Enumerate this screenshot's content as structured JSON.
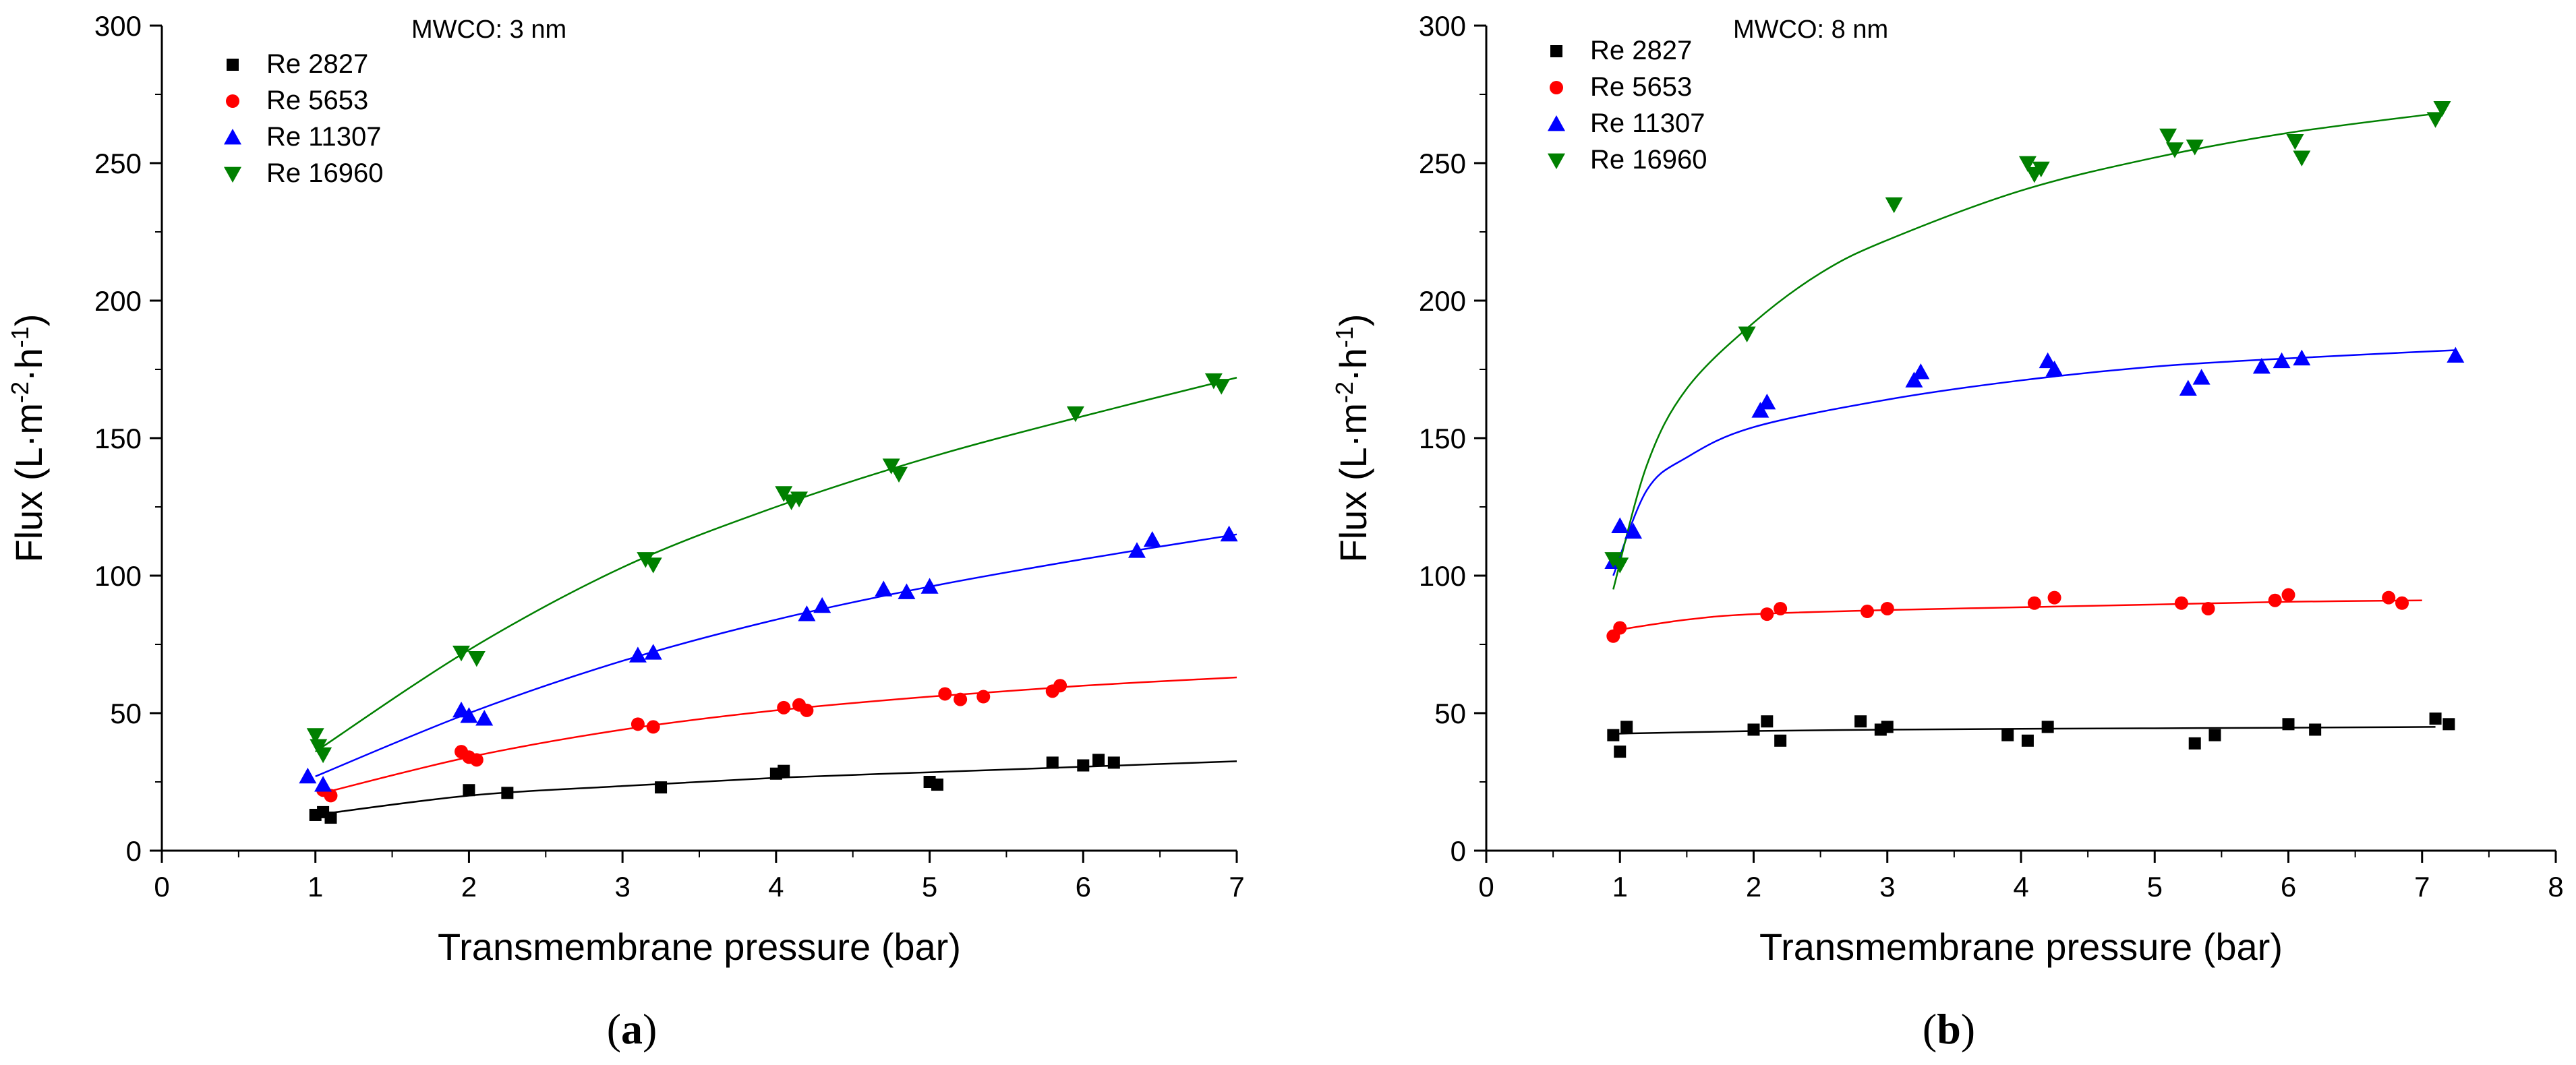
{
  "chart_data": [
    {
      "type": "scatter",
      "panel": "(a)",
      "caption_letter": "a",
      "annotation": "MWCO: 3 nm",
      "xlabel": "Transmembrane pressure (bar)",
      "ylabel": "Flux (L·m⁻²·h⁻¹)",
      "ylabel_parts": {
        "base": "Flux (L·m",
        "sup1": "-2",
        "mid": "·h",
        "sup2": "-1",
        "end": ")"
      },
      "xlim": [
        0,
        7
      ],
      "ylim": [
        0,
        300
      ],
      "xticks": [
        0,
        1,
        2,
        3,
        4,
        5,
        6,
        7
      ],
      "yticks": [
        0,
        50,
        100,
        150,
        200,
        250,
        300
      ],
      "legend_position": "top-left",
      "series": [
        {
          "name": "Re 2827",
          "color": "#000000",
          "marker": "square",
          "x": [
            1.0,
            1.05,
            1.1,
            2.0,
            2.25,
            3.25,
            4.0,
            4.05,
            5.0,
            5.05,
            5.8,
            6.0,
            6.1,
            6.2
          ],
          "y": [
            13,
            14,
            12,
            22,
            21,
            23,
            28,
            29,
            25,
            24,
            32,
            31,
            33,
            32
          ],
          "fit": {
            "x": [
              1.0,
              2,
              3,
              4,
              5,
              6,
              7
            ],
            "y": [
              13,
              20,
              23.5,
              26.5,
              28.5,
              30.5,
              32.5
            ]
          }
        },
        {
          "name": "Re 5653",
          "color": "#ff0000",
          "marker": "circle",
          "x": [
            1.05,
            1.1,
            1.95,
            2.0,
            2.05,
            3.1,
            3.2,
            4.05,
            4.15,
            4.2,
            5.1,
            5.2,
            5.35,
            5.8,
            5.85
          ],
          "y": [
            22,
            20,
            36,
            34,
            33,
            46,
            45,
            52,
            53,
            51,
            57,
            55,
            56,
            58,
            60
          ],
          "fit": {
            "x": [
              1.05,
              2,
              3,
              4,
              5,
              6,
              7
            ],
            "y": [
              21,
              34,
              44,
              51,
              56,
              60,
              63
            ]
          }
        },
        {
          "name": "Re 11307",
          "color": "#0000ff",
          "marker": "triangle-up",
          "x": [
            0.95,
            1.05,
            1.95,
            2.0,
            2.1,
            3.1,
            3.2,
            4.2,
            4.3,
            4.7,
            4.85,
            5.0,
            6.35,
            6.45,
            6.95
          ],
          "y": [
            27,
            24,
            51,
            49,
            48,
            71,
            72,
            86,
            89,
            95,
            94,
            96,
            109,
            113,
            115
          ],
          "fit": {
            "x": [
              1.0,
              2,
              3,
              4,
              5,
              6,
              7
            ],
            "y": [
              27,
              50,
              69,
              84,
              96,
              106,
              115
            ]
          }
        },
        {
          "name": "Re 16960",
          "color": "#008000",
          "marker": "triangle-down",
          "x": [
            1.0,
            1.02,
            1.05,
            1.95,
            2.05,
            3.15,
            3.2,
            4.05,
            4.1,
            4.15,
            4.75,
            4.8,
            5.95,
            6.85,
            6.9
          ],
          "y": [
            42,
            38,
            35,
            72,
            70,
            106,
            104,
            130,
            127,
            128,
            140,
            137,
            159,
            171,
            169
          ],
          "fit": {
            "x": [
              1.0,
              2,
              3,
              4,
              5,
              6,
              7
            ],
            "y": [
              36,
              73,
              103,
              125,
              143,
              158,
              172
            ]
          }
        }
      ]
    },
    {
      "type": "scatter",
      "panel": "(b)",
      "caption_letter": "b",
      "annotation": "MWCO: 8 nm",
      "xlabel": "Transmembrane pressure (bar)",
      "ylabel": "Flux (L·m⁻²·h⁻¹)",
      "ylabel_parts": {
        "base": "Flux (L·m",
        "sup1": "-2",
        "mid": "·h",
        "sup2": "-1",
        "end": ")"
      },
      "xlim": [
        0,
        8
      ],
      "ylim": [
        0,
        300
      ],
      "xticks": [
        0,
        1,
        2,
        3,
        4,
        5,
        6,
        7,
        8
      ],
      "yticks": [
        0,
        50,
        100,
        150,
        200,
        250,
        300
      ],
      "legend_position": "top-left",
      "series": [
        {
          "name": "Re 2827",
          "color": "#000000",
          "marker": "square",
          "x": [
            0.95,
            1.0,
            1.05,
            2.0,
            2.1,
            2.2,
            2.8,
            2.95,
            3.0,
            3.9,
            4.05,
            4.2,
            5.3,
            5.45,
            6.0,
            6.2,
            7.1,
            7.2
          ],
          "y": [
            42,
            36,
            45,
            44,
            47,
            40,
            47,
            44,
            45,
            42,
            40,
            45,
            39,
            42,
            46,
            44,
            48,
            46
          ],
          "fit": {
            "x": [
              0.95,
              2,
              3,
              4,
              5,
              6,
              7.1
            ],
            "y": [
              42.5,
              43.5,
              44,
              44.3,
              44.5,
              44.7,
              45
            ]
          }
        },
        {
          "name": "Re 5653",
          "color": "#ff0000",
          "marker": "circle",
          "x": [
            0.95,
            1.0,
            2.1,
            2.2,
            2.85,
            3.0,
            4.1,
            4.25,
            5.2,
            5.4,
            5.9,
            6.0,
            6.75,
            6.85
          ],
          "y": [
            78,
            81,
            86,
            88,
            87,
            88,
            90,
            92,
            90,
            88,
            91,
            93,
            92,
            90
          ],
          "fit": {
            "x": [
              0.95,
              1.5,
              2,
              3,
              4,
              5,
              6,
              7
            ],
            "y": [
              80,
              84,
              86,
              87.5,
              88.5,
              89.5,
              90.5,
              91
            ]
          }
        },
        {
          "name": "Re 11307",
          "color": "#0000ff",
          "marker": "triangle-up",
          "x": [
            0.95,
            1.0,
            1.1,
            2.05,
            2.1,
            3.2,
            3.25,
            4.2,
            4.25,
            5.25,
            5.35,
            5.8,
            5.95,
            6.1,
            7.25
          ],
          "y": [
            105,
            118,
            116,
            160,
            163,
            171,
            174,
            178,
            175,
            168,
            172,
            176,
            178,
            179,
            180
          ],
          "fit": {
            "x": [
              0.95,
              1.2,
              1.5,
              2,
              3,
              4,
              5,
              6,
              7.25
            ],
            "y": [
              100,
              131,
              143,
              154,
              164,
              171,
              176,
              179,
              182
            ]
          }
        },
        {
          "name": "Re 16960",
          "color": "#008000",
          "marker": "triangle-down",
          "x": [
            0.95,
            1.0,
            1.95,
            3.05,
            4.05,
            4.1,
            4.15,
            5.1,
            5.15,
            5.3,
            6.05,
            6.1,
            7.1,
            7.15
          ],
          "y": [
            106,
            104,
            188,
            235,
            250,
            246,
            248,
            260,
            255,
            256,
            258,
            252,
            266,
            270
          ],
          "fit": {
            "x": [
              0.95,
              1.2,
              1.5,
              2,
              2.5,
              3,
              4,
              5,
              6,
              7.1
            ],
            "y": [
              95,
              140,
              168,
              192,
              210,
              222,
              240,
              252,
              261,
              268
            ]
          }
        }
      ]
    }
  ]
}
